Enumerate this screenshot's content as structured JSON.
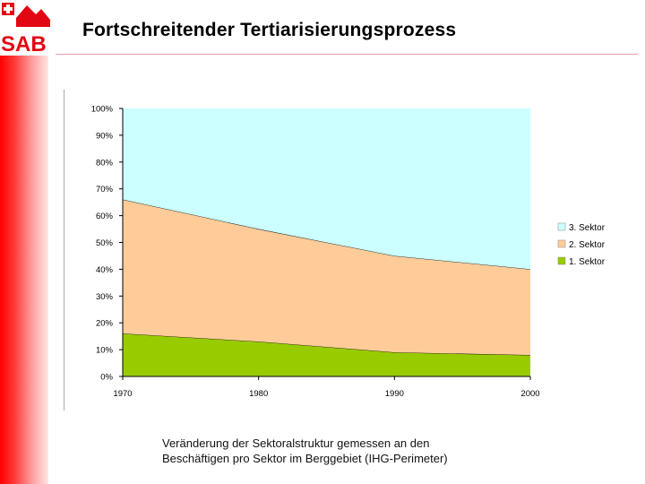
{
  "header": {
    "logo_text": "SAB",
    "title": "Fortschreitender Tertiarisierungsprozess"
  },
  "caption": {
    "line1": "Veränderung der Sektoralstruktur gemessen an den",
    "line2": "Beschäftigen pro Sektor im Berggebiet (IHG-Perimeter)"
  },
  "colors": {
    "brand_red": "#e30613",
    "sector1": "#99cc00",
    "sector2": "#ffcc99",
    "sector3": "#ccffff"
  },
  "chart_data": {
    "type": "area",
    "stacked": true,
    "percent": true,
    "x": [
      1970,
      1980,
      1990,
      2000
    ],
    "x_tick_labels": [
      "1970",
      "1980",
      "1990",
      "2000"
    ],
    "y_tick_labels": [
      "0%",
      "10%",
      "20%",
      "30%",
      "40%",
      "50%",
      "60%",
      "70%",
      "80%",
      "90%",
      "100%"
    ],
    "ylim": [
      0,
      100
    ],
    "legend_position": "right",
    "series": [
      {
        "name": "1. Sektor",
        "values": [
          16,
          13,
          9,
          8
        ],
        "color": "#99cc00"
      },
      {
        "name": "2. Sektor",
        "values": [
          50,
          42,
          36,
          32
        ],
        "color": "#ffcc99"
      },
      {
        "name": "3. Sektor",
        "values": [
          34,
          45,
          55,
          60
        ],
        "color": "#ccffff"
      }
    ]
  }
}
